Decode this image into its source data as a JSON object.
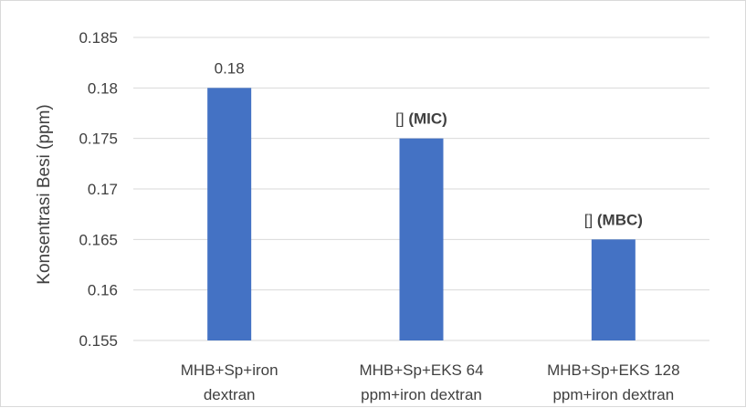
{
  "chart_data": {
    "type": "bar",
    "title": "",
    "xlabel": "",
    "ylabel": "Konsentrasi Besi (ppm)",
    "ylim": [
      0.155,
      0.185
    ],
    "yticks": [
      "0.155",
      "0.16",
      "0.165",
      "0.17",
      "0.175",
      "0.18",
      "0.185"
    ],
    "categories": [
      [
        "MHB+Sp+iron",
        "dextran"
      ],
      [
        "MHB+Sp+EKS 64",
        "ppm+iron dextran"
      ],
      [
        "MHB+Sp+EKS 128",
        "ppm+iron dextran"
      ]
    ],
    "values": [
      0.18,
      0.175,
      0.165
    ],
    "data_labels": [
      {
        "text": "0.18",
        "suffix": ""
      },
      {
        "text": "[]",
        "suffix": "(MIC)"
      },
      {
        "text": "[]",
        "suffix": "(MBC)"
      }
    ],
    "bar_color": "#4472c4",
    "grid": true,
    "gridline_color": "#d9d9d9",
    "legend": "none"
  }
}
